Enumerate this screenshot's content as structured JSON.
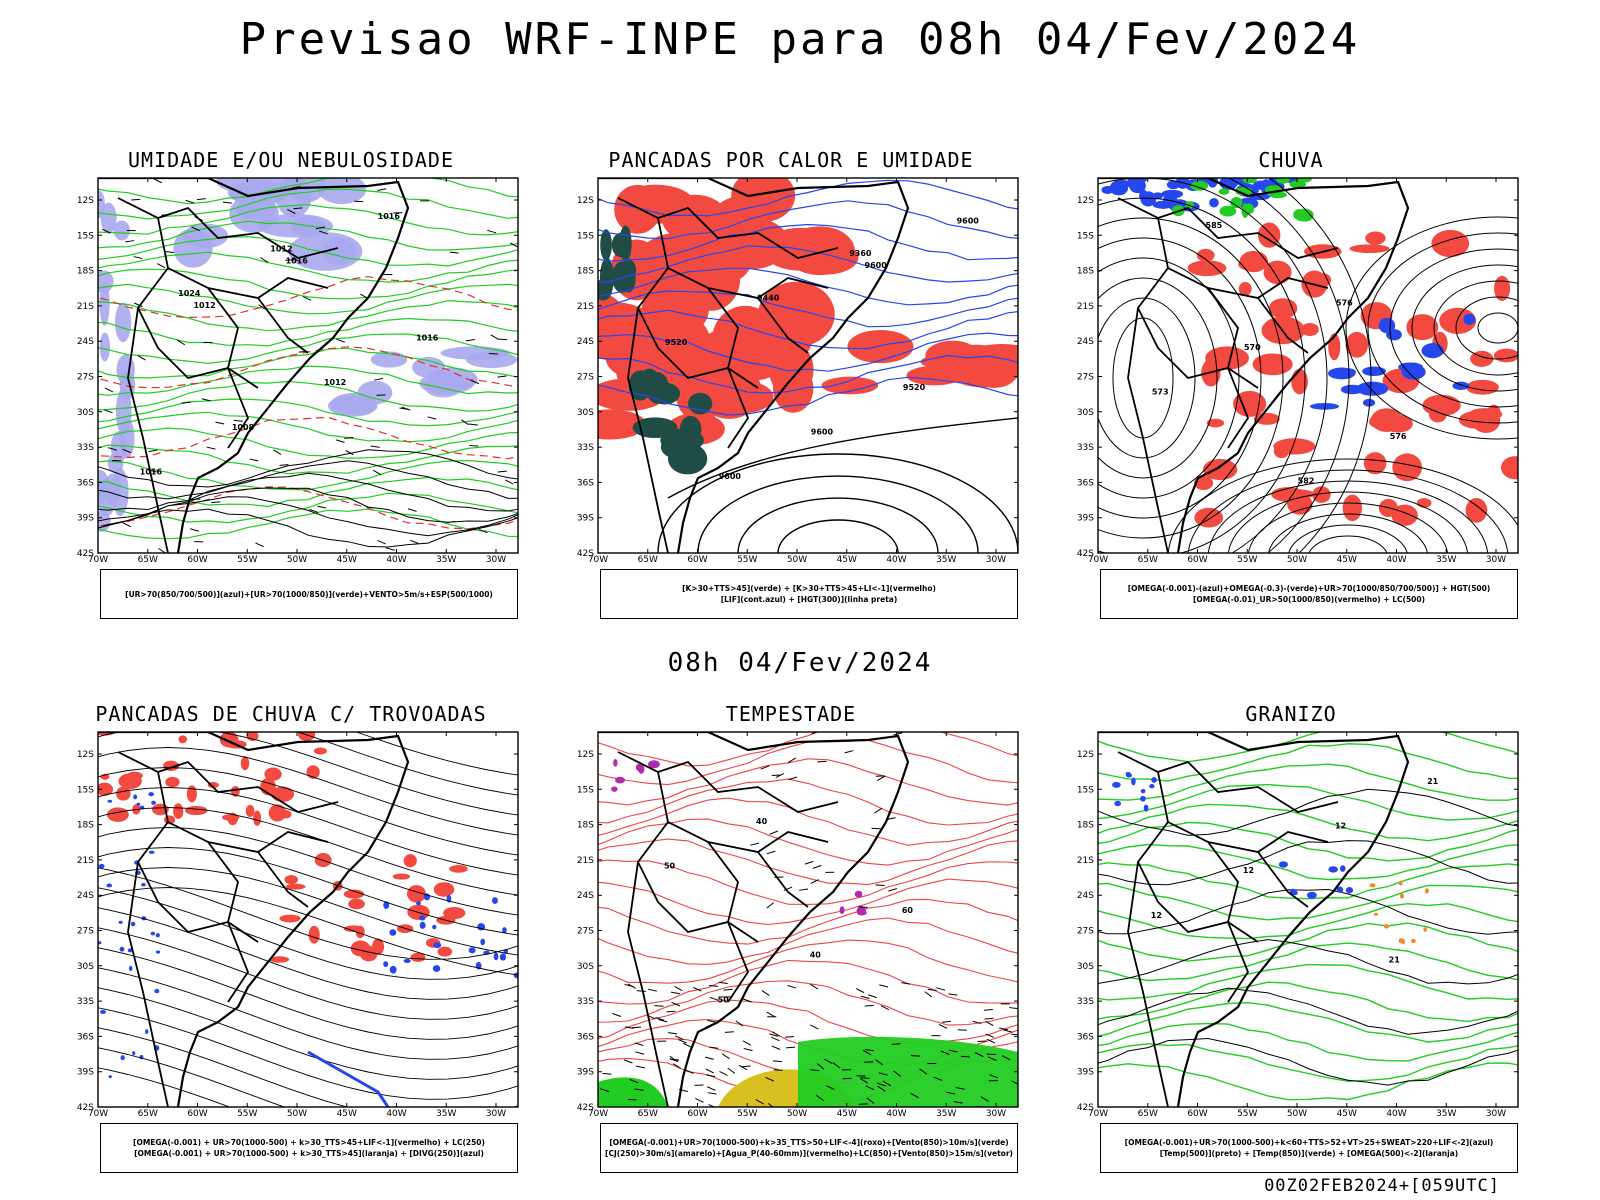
{
  "title": "Previsao WRF-INPE  para 08h 04/Fev/2024",
  "mid_time": "08h 04/Fev/2024",
  "footer": "00Z02FEB2024+[059UTC]",
  "axis": {
    "lat_labels": [
      "12S",
      "15S",
      "18S",
      "21S",
      "24S",
      "27S",
      "30S",
      "33S",
      "36S",
      "39S",
      "42S"
    ],
    "lon_labels": [
      "70W",
      "65W",
      "60W",
      "55W",
      "50W",
      "45W",
      "40W",
      "35W",
      "30W"
    ]
  },
  "colors": {
    "red": "#f24a40",
    "green": "#22cc22",
    "blue": "#2646ee",
    "lavender": "#a9a9ee",
    "darkteal": "#1f4d45",
    "yellow": "#d8c020",
    "orange": "#ef8a2a",
    "purple": "#b02ab0"
  },
  "panels": [
    {
      "title": "UMIDADE E/OU NEBULOSIDADE",
      "legend": [
        "[UR>70(850/700/500)](azul)+[UR>70(1000/850)](verde)+VENTO>5m/s+ESP(500/1000)"
      ],
      "contour_labels": [
        "1012",
        "1016",
        "1016",
        "1016",
        "1008",
        "1012",
        "1016",
        "1024",
        "1012"
      ]
    },
    {
      "title": "PANCADAS POR CALOR E UMIDADE",
      "legend": [
        "[K>30+TTS>45](verde) + [K>30+TTS>45+LI<-1](vermelho)",
        "[LIF](cont.azul) + [HGT(300)](linha preta)"
      ],
      "contour_labels": [
        "9600",
        "9600",
        "9600",
        "9600",
        "9520",
        "9520",
        "9440",
        "9360"
      ]
    },
    {
      "title": "CHUVA",
      "legend": [
        "[OMEGA(-0.001)-(azul)+OMEGA(-0.3)-(verde)+UR>70(1000/850/700/500)] + HGT(500)",
        "[OMEGA(-0.01)_UR>50(1000/850)(vermelho) + LC(500)"
      ],
      "contour_labels": [
        "585",
        "582",
        "576",
        "573",
        "570",
        "576"
      ]
    },
    {
      "title": "PANCADAS DE CHUVA C/ TROVOADAS",
      "legend": [
        "[OMEGA(-0.001) + UR>70(1000-500) + k>30_TTS>45+LIF<-1](vermelho) + LC(250)",
        "[OMEGA(-0.001) + UR>70(1000-500) + k>30_TTS>45](laranja) + [DIVG(250)](azul)"
      ],
      "contour_labels": []
    },
    {
      "title": "TEMPESTADE",
      "legend": [
        "[OMEGA(-0.001)+UR>70(1000-500)+k>35_TTS>50+LIF<-4](roxo)+[Vento(850)>10m/s](verde)",
        "[CJ(250)>30m/s](amarelo)+[Agua_P(40-60mm)](vermelho)+LC(850)+[Vento(850)>15m/s](vetor)"
      ],
      "contour_labels": [
        "50",
        "40",
        "60",
        "50",
        "40"
      ]
    },
    {
      "title": "GRANIZO",
      "legend": [
        "[OMEGA(-0.001)+UR>70(1000-500)+k<60+TTS>52+VT>25+SWEAT>220+LIF<-2](azul)",
        "[Temp(500)](preto) + [Temp(850)](verde) + [OMEGA(500)<-2](laranja)"
      ],
      "contour_labels": [
        "21",
        "12",
        "12",
        "12",
        "21"
      ]
    }
  ]
}
